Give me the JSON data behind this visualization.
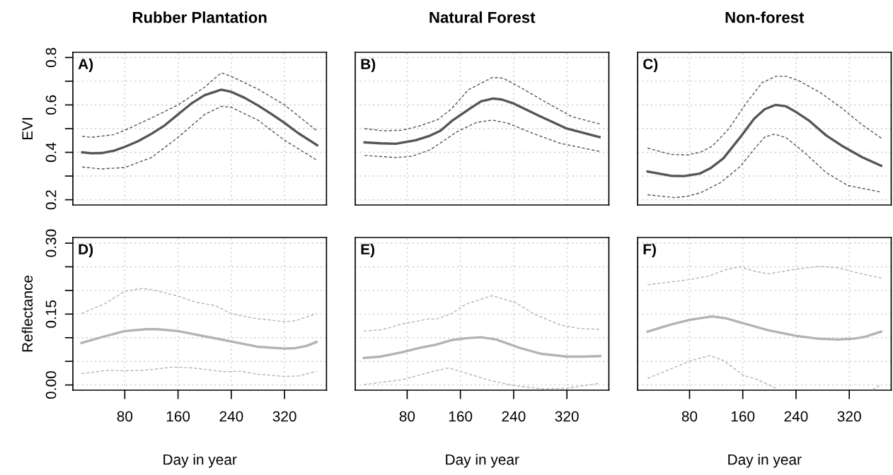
{
  "chart_data": [
    {
      "type": "line",
      "title": "Rubber Plantation",
      "ylabel": "EVI",
      "annotations": [
        "A)"
      ],
      "xlim": [
        2,
        383
      ],
      "ylim": [
        0.178,
        0.822
      ],
      "xticks": [
        80,
        160,
        240,
        320
      ],
      "yticks": [
        0.2,
        {
          "value": 0.3,
          "label": null
        },
        0.4,
        {
          "value": 0.5,
          "label": null
        },
        0.6,
        {
          "value": 0.7,
          "label": null
        },
        0.8
      ],
      "grid": true,
      "tick_labels": "y",
      "series": [
        {
          "color": "#555555",
          "line_style": "solid",
          "x": [
            16,
            30,
            45,
            64,
            80,
            100,
            120,
            140,
            160,
            180,
            200,
            220,
            225,
            240,
            260,
            280,
            300,
            320,
            340,
            369
          ],
          "values": [
            0.4,
            0.396,
            0.397,
            0.407,
            0.423,
            0.447,
            0.478,
            0.514,
            0.56,
            0.606,
            0.641,
            0.66,
            0.664,
            0.655,
            0.63,
            0.598,
            0.562,
            0.524,
            0.482,
            0.43
          ]
        },
        {
          "color": "#555555",
          "line_style": "dashed",
          "x": [
            16,
            30,
            64,
            80,
            120,
            160,
            200,
            225,
            240,
            280,
            320,
            369
          ],
          "values": [
            0.468,
            0.463,
            0.475,
            0.493,
            0.545,
            0.6,
            0.675,
            0.736,
            0.72,
            0.667,
            0.6,
            0.49
          ]
        },
        {
          "color": "#555555",
          "line_style": "dashed",
          "x": [
            16,
            45,
            80,
            120,
            160,
            200,
            225,
            240,
            280,
            320,
            369
          ],
          "values": [
            0.338,
            0.33,
            0.336,
            0.378,
            0.463,
            0.56,
            0.594,
            0.59,
            0.536,
            0.451,
            0.366
          ]
        }
      ]
    },
    {
      "type": "line",
      "title": "Natural Forest",
      "annotations": [
        "B)"
      ],
      "xlim": [
        2,
        383
      ],
      "ylim": [
        0.178,
        0.822
      ],
      "xticks": [
        80,
        160,
        240,
        320
      ],
      "yticks": [
        0.2,
        {
          "value": 0.3,
          "label": null
        },
        0.4,
        {
          "value": 0.5,
          "label": null
        },
        0.6,
        {
          "value": 0.7,
          "label": null
        },
        0.8
      ],
      "grid": true,
      "tick_labels": false,
      "series": [
        {
          "color": "#555555",
          "line_style": "solid",
          "x": [
            16,
            40,
            63,
            93,
            114,
            130,
            147,
            177,
            191,
            209,
            222,
            240,
            278,
            320,
            369
          ],
          "values": [
            0.442,
            0.438,
            0.436,
            0.451,
            0.47,
            0.491,
            0.532,
            0.59,
            0.615,
            0.627,
            0.623,
            0.606,
            0.554,
            0.5,
            0.464
          ]
        },
        {
          "color": "#555555",
          "line_style": "dashed",
          "x": [
            16,
            44,
            72,
            97,
            126,
            147,
            172,
            208,
            224,
            248,
            290,
            328,
            369
          ],
          "values": [
            0.5,
            0.491,
            0.493,
            0.51,
            0.538,
            0.584,
            0.664,
            0.716,
            0.713,
            0.677,
            0.609,
            0.55,
            0.52
          ]
        },
        {
          "color": "#555555",
          "line_style": "dashed",
          "x": [
            16,
            63,
            88,
            114,
            126,
            155,
            184,
            208,
            231,
            268,
            310,
            369
          ],
          "values": [
            0.387,
            0.378,
            0.384,
            0.41,
            0.432,
            0.487,
            0.526,
            0.536,
            0.523,
            0.481,
            0.438,
            0.404
          ]
        }
      ]
    },
    {
      "type": "line",
      "title": "Non-forest",
      "annotations": [
        "C)"
      ],
      "xlim": [
        2,
        383
      ],
      "ylim": [
        0.178,
        0.822
      ],
      "xticks": [
        80,
        160,
        240,
        320
      ],
      "yticks": [
        0.2,
        {
          "value": 0.3,
          "label": null
        },
        0.4,
        {
          "value": 0.5,
          "label": null
        },
        0.6,
        {
          "value": 0.7,
          "label": null
        },
        0.8
      ],
      "grid": true,
      "tick_labels": false,
      "series": [
        {
          "color": "#555555",
          "line_style": "solid",
          "x": [
            17,
            52,
            72,
            95,
            112,
            131,
            156,
            177,
            193,
            209,
            225,
            239,
            260,
            285,
            310,
            339,
            368
          ],
          "values": [
            0.319,
            0.301,
            0.3,
            0.31,
            0.334,
            0.375,
            0.463,
            0.542,
            0.582,
            0.6,
            0.594,
            0.572,
            0.533,
            0.472,
            0.426,
            0.38,
            0.343
          ]
        },
        {
          "color": "#555555",
          "line_style": "dashed",
          "x": [
            17,
            52,
            77,
            97,
            114,
            139,
            164,
            189,
            210,
            225,
            243,
            277,
            310,
            339,
            368
          ],
          "values": [
            0.418,
            0.391,
            0.389,
            0.401,
            0.426,
            0.499,
            0.603,
            0.694,
            0.721,
            0.721,
            0.704,
            0.651,
            0.584,
            0.517,
            0.46
          ]
        },
        {
          "color": "#555555",
          "line_style": "dashed",
          "x": [
            17,
            58,
            77,
            97,
            127,
            156,
            177,
            193,
            208,
            225,
            252,
            285,
            318,
            368
          ],
          "values": [
            0.221,
            0.209,
            0.215,
            0.23,
            0.273,
            0.34,
            0.413,
            0.465,
            0.477,
            0.462,
            0.401,
            0.315,
            0.26,
            0.232
          ]
        }
      ]
    },
    {
      "type": "line",
      "xlabel": "Day in year",
      "ylabel": "Reflectance",
      "annotations": [
        "D)"
      ],
      "xlim": [
        2,
        383
      ],
      "ylim": [
        -0.011,
        0.312
      ],
      "xticks": [
        80,
        160,
        240,
        320
      ],
      "yticks": [
        {
          "value": 0,
          "label": "0.00"
        },
        {
          "value": 0.05,
          "label": null
        },
        {
          "value": 0.1,
          "label": null
        },
        {
          "value": 0.15,
          "label": "0.15"
        },
        {
          "value": 0.2,
          "label": null
        },
        {
          "value": 0.25,
          "label": null
        },
        {
          "value": 0.3,
          "label": "0.30"
        }
      ],
      "grid": true,
      "series": [
        {
          "color": "#b3b3b3",
          "line_style": "solid",
          "x": [
            15,
            50,
            80,
            112,
            129,
            160,
            200,
            240,
            279,
            320,
            337,
            354,
            368
          ],
          "values": [
            0.089,
            0.103,
            0.114,
            0.118,
            0.118,
            0.114,
            0.103,
            0.092,
            0.081,
            0.077,
            0.078,
            0.083,
            0.091
          ]
        },
        {
          "color": "#b3b3b3",
          "line_style": "dashed",
          "x": [
            15,
            50,
            80,
            104,
            120,
            160,
            187,
            216,
            240,
            270,
            320,
            337,
            368
          ],
          "values": [
            0.151,
            0.172,
            0.198,
            0.204,
            0.202,
            0.188,
            0.175,
            0.168,
            0.151,
            0.142,
            0.134,
            0.136,
            0.151
          ]
        },
        {
          "color": "#b3b3b3",
          "line_style": "dashed",
          "x": [
            15,
            54,
            80,
            108,
            154,
            183,
            229,
            254,
            279,
            320,
            341,
            368
          ],
          "values": [
            0.024,
            0.031,
            0.03,
            0.031,
            0.038,
            0.036,
            0.028,
            0.029,
            0.023,
            0.018,
            0.019,
            0.029
          ]
        }
      ]
    },
    {
      "type": "line",
      "xlabel": "Day in year",
      "annotations": [
        "E)"
      ],
      "xlim": [
        2,
        383
      ],
      "ylim": [
        -0.011,
        0.312
      ],
      "xticks": [
        80,
        160,
        240,
        320
      ],
      "yticks": [
        0,
        0.05,
        0.1,
        0.15,
        0.2,
        0.25,
        0.3
      ],
      "grid": true,
      "tick_labels": "x",
      "series": [
        {
          "color": "#b3b3b3",
          "line_style": "solid",
          "x": [
            15,
            40,
            72,
            100,
            122,
            147,
            170,
            191,
            214,
            248,
            281,
            320,
            345,
            370
          ],
          "values": [
            0.057,
            0.06,
            0.069,
            0.079,
            0.085,
            0.095,
            0.099,
            0.101,
            0.096,
            0.079,
            0.066,
            0.06,
            0.06,
            0.061
          ]
        },
        {
          "color": "#b3b3b3",
          "line_style": "dashed",
          "x": [
            15,
            43,
            72,
            114,
            122,
            147,
            168,
            208,
            243,
            272,
            310,
            340,
            370
          ],
          "values": [
            0.114,
            0.117,
            0.129,
            0.14,
            0.139,
            0.151,
            0.171,
            0.189,
            0.174,
            0.149,
            0.127,
            0.119,
            0.118
          ]
        },
        {
          "color": "#b3b3b3",
          "line_style": "dashed",
          "x": [
            15,
            72,
            114,
            122,
            143,
            164,
            206,
            240,
            281,
            320,
            370
          ],
          "values": [
            0.001,
            0.011,
            0.027,
            0.03,
            0.036,
            0.027,
            0.009,
            -0.001,
            -0.008,
            -0.007,
            0.004
          ]
        }
      ]
    },
    {
      "type": "line",
      "xlabel": "Day in year",
      "annotations": [
        "F)"
      ],
      "xlim": [
        2,
        383
      ],
      "ylim": [
        -0.011,
        0.312
      ],
      "xticks": [
        80,
        160,
        240,
        320
      ],
      "yticks": [
        0,
        0.05,
        0.1,
        0.15,
        0.2,
        0.25,
        0.3
      ],
      "grid": true,
      "tick_labels": "x",
      "series": [
        {
          "color": "#b3b3b3",
          "line_style": "solid",
          "x": [
            17,
            52,
            81,
            114,
            135,
            160,
            198,
            240,
            273,
            302,
            327,
            344,
            368
          ],
          "values": [
            0.113,
            0.128,
            0.138,
            0.145,
            0.141,
            0.131,
            0.116,
            0.104,
            0.098,
            0.096,
            0.098,
            0.102,
            0.113
          ]
        },
        {
          "color": "#b3b3b3",
          "line_style": "dashed",
          "x": [
            17,
            52,
            81,
            110,
            135,
            156,
            177,
            198,
            240,
            277,
            302,
            327,
            368
          ],
          "values": [
            0.212,
            0.218,
            0.223,
            0.231,
            0.244,
            0.25,
            0.241,
            0.235,
            0.245,
            0.251,
            0.248,
            0.239,
            0.226
          ]
        },
        {
          "color": "#b3b3b3",
          "line_style": "dashed",
          "x": [
            17,
            52,
            81,
            110,
            131,
            160,
            181,
            210,
            213,
            280,
            355,
            368
          ],
          "values": [
            0.014,
            0.034,
            0.051,
            0.062,
            0.052,
            0.021,
            0.012,
            -0.007,
            -0.01,
            null,
            -0.01,
            0.001
          ]
        }
      ]
    }
  ]
}
